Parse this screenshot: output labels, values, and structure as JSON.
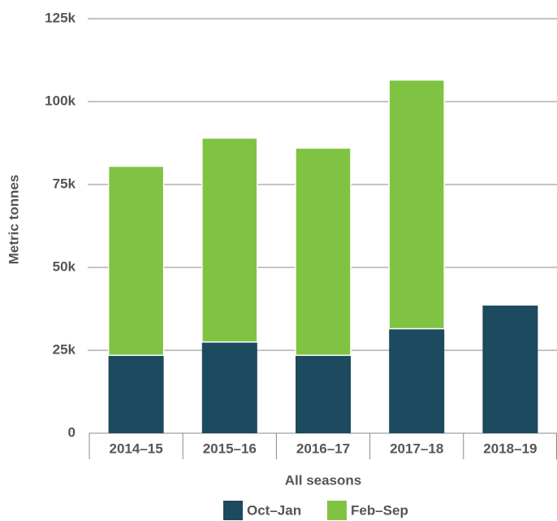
{
  "chart_data": {
    "type": "stacked_bar",
    "y_label": "Metric tonnes",
    "x_label": "All seasons",
    "categories": [
      "2014–15",
      "2015–16",
      "2016–17",
      "2017–18",
      "2018–19"
    ],
    "series": [
      {
        "name": "Oct–Jan",
        "color": "#1c4a5e",
        "values": [
          23500,
          27500,
          23500,
          31500,
          38500
        ]
      },
      {
        "name": "Feb–Sep",
        "color": "#80c342",
        "values": [
          57000,
          61500,
          62500,
          75000,
          null
        ]
      }
    ],
    "ylim": [
      0,
      125000
    ],
    "yticks": [
      0,
      {
        "value": 25000,
        "label": "25k"
      },
      {
        "value": 50000,
        "label": "50k"
      },
      {
        "value": 75000,
        "label": "75k"
      },
      {
        "value": 100000,
        "label": "100k"
      },
      {
        "value": 125000,
        "label": "125k"
      }
    ],
    "grid": true,
    "legend": "bottom"
  }
}
